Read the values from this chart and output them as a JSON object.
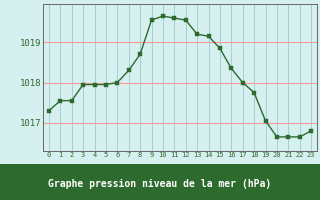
{
  "x": [
    0,
    1,
    2,
    3,
    4,
    5,
    6,
    7,
    8,
    9,
    10,
    11,
    12,
    13,
    14,
    15,
    16,
    17,
    18,
    19,
    20,
    21,
    22,
    23
  ],
  "y": [
    1017.3,
    1017.55,
    1017.55,
    1017.95,
    1017.95,
    1017.95,
    1018.0,
    1018.3,
    1018.7,
    1019.55,
    1019.65,
    1019.6,
    1019.55,
    1019.2,
    1019.15,
    1018.85,
    1018.35,
    1018.0,
    1017.75,
    1017.05,
    1016.65,
    1016.65,
    1016.65,
    1016.8
  ],
  "line_color": "#2d6a2d",
  "marker_color": "#2d6a2d",
  "bg_color": "#d6f0f0",
  "grid_color_major": "#ff9999",
  "grid_color_minor": "#99cccc",
  "xlabel": "Graphe pression niveau de la mer (hPa)",
  "ylabel_ticks": [
    1017,
    1018,
    1019
  ],
  "ylim": [
    1016.3,
    1019.95
  ],
  "xlim": [
    -0.5,
    23.5
  ],
  "xtick_labels": [
    "0",
    "1",
    "2",
    "3",
    "4",
    "5",
    "6",
    "7",
    "8",
    "9",
    "10",
    "11",
    "12",
    "13",
    "14",
    "15",
    "16",
    "17",
    "18",
    "19",
    "20",
    "21",
    "22",
    "23"
  ],
  "tick_color": "#2d6a2d",
  "bottom_bar_color": "#2d6a2d",
  "axis_spine_color": "#666666"
}
